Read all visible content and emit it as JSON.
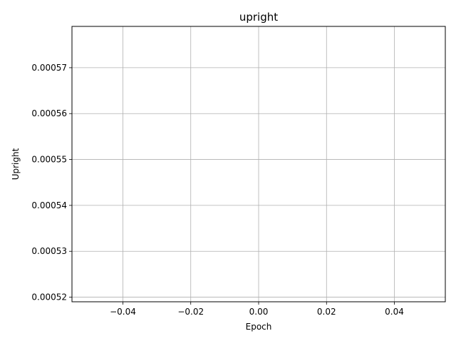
{
  "chart_data": {
    "type": "line",
    "title": "upright",
    "xlabel": "Epoch",
    "ylabel": "Upright",
    "xlim": [
      -0.055,
      0.055
    ],
    "ylim": [
      0.000519,
      0.000579
    ],
    "xticks": [
      -0.04,
      -0.02,
      0.0,
      0.02,
      0.04
    ],
    "xtick_labels": [
      "−0.04",
      "−0.02",
      "0.00",
      "0.02",
      "0.04"
    ],
    "yticks": [
      0.00052,
      0.00053,
      0.00054,
      0.00055,
      0.00056,
      0.00057
    ],
    "ytick_labels": [
      "0.00052",
      "0.00053",
      "0.00054",
      "0.00055",
      "0.00056",
      "0.00057"
    ],
    "grid": true,
    "series": [
      {
        "x": [],
        "y": []
      }
    ]
  }
}
